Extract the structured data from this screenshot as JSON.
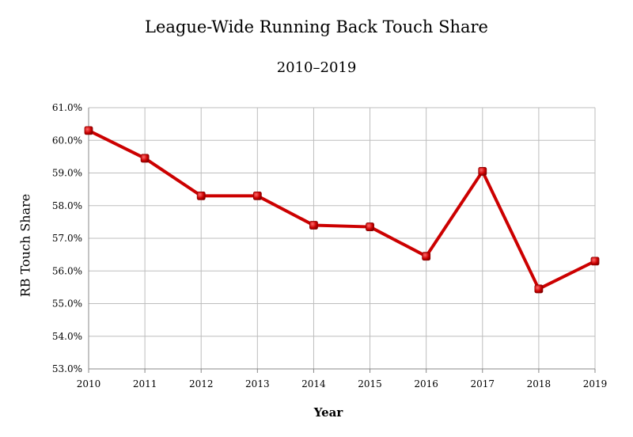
{
  "chart_data": {
    "type": "line",
    "title": "League-Wide Running Back Touch Share",
    "subtitle": "2010–2019",
    "xlabel": "Year",
    "ylabel": "RB Touch Share",
    "categories": [
      "2010",
      "2011",
      "2012",
      "2013",
      "2014",
      "2015",
      "2016",
      "2017",
      "2018",
      "2019"
    ],
    "series": [
      {
        "values": [
          60.3,
          59.45,
          58.3,
          58.3,
          57.4,
          57.35,
          56.45,
          59.05,
          55.45,
          56.3
        ],
        "color": "#cc0000"
      }
    ],
    "ylim": [
      53,
      61
    ],
    "yticks": [
      "53.0%",
      "54.0%",
      "55.0%",
      "56.0%",
      "57.0%",
      "58.0%",
      "59.0%",
      "60.0%",
      "61.0%"
    ],
    "grid": true,
    "legend": "none"
  }
}
